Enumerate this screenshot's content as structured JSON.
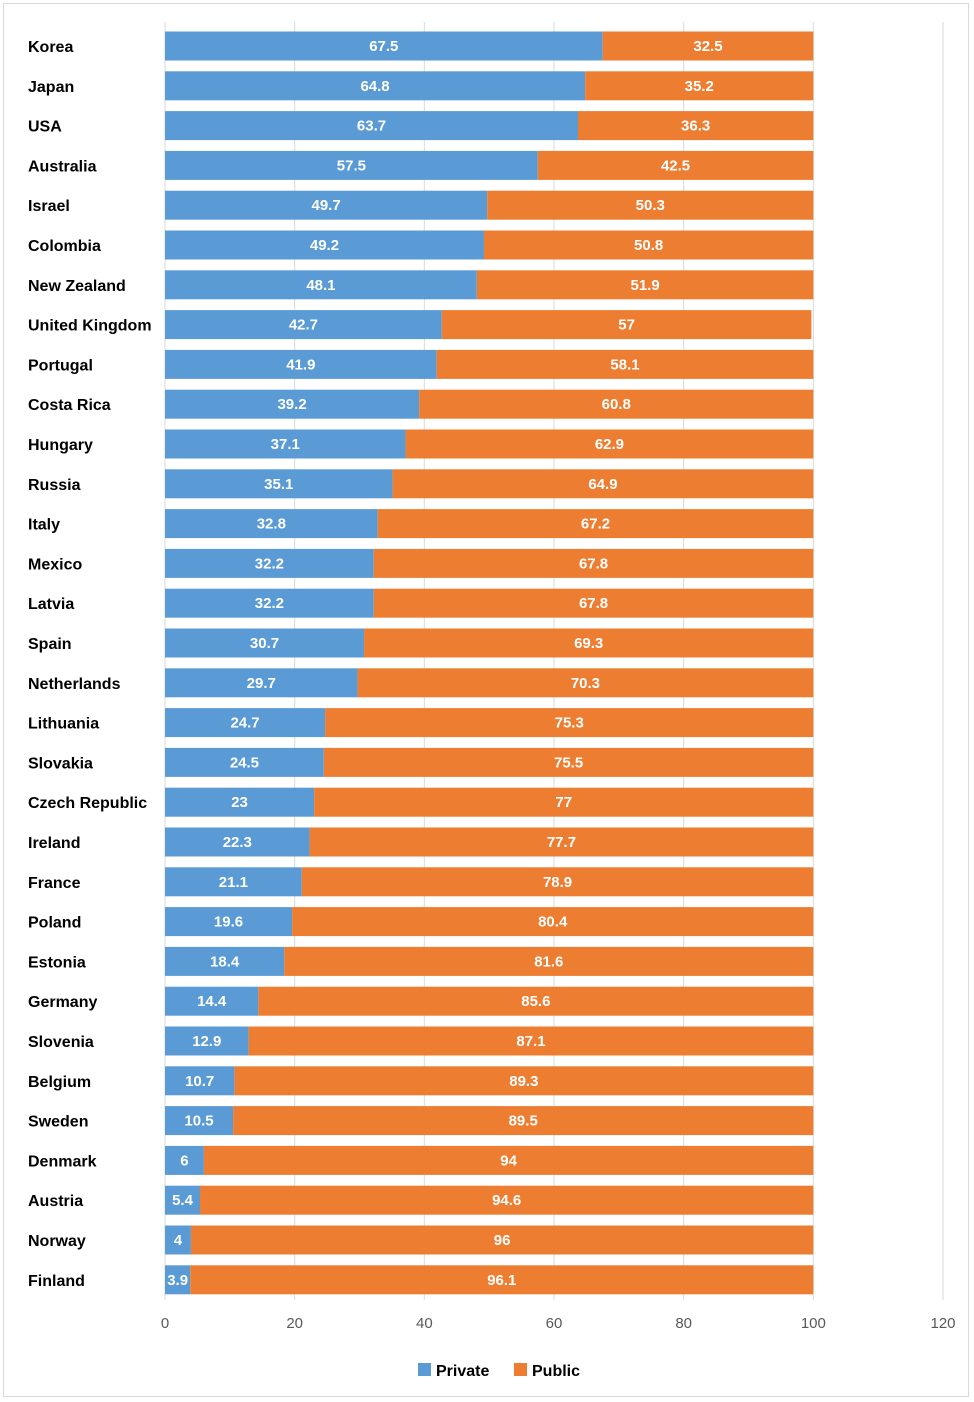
{
  "chart_data": {
    "type": "bar",
    "orientation": "horizontal",
    "stacked": true,
    "categories": [
      "Korea",
      "Japan",
      "USA",
      "Australia",
      "Israel",
      "Colombia",
      "New Zealand",
      "United Kingdom",
      "Portugal",
      "Costa Rica",
      "Hungary",
      "Russia",
      "Italy",
      "Mexico",
      "Latvia",
      "Spain",
      "Netherlands",
      "Lithuania",
      "Slovakia",
      "Czech Republic",
      "Ireland",
      "France",
      "Poland",
      "Estonia",
      "Germany",
      "Slovenia",
      "Belgium",
      "Sweden",
      "Denmark",
      "Austria",
      "Norway",
      "Finland"
    ],
    "series": [
      {
        "name": "Private",
        "color": "#5b9bd5",
        "values": [
          67.5,
          64.8,
          63.7,
          57.5,
          49.7,
          49.2,
          48.1,
          42.7,
          41.9,
          39.2,
          37.1,
          35.1,
          32.8,
          32.2,
          32.2,
          30.7,
          29.7,
          24.7,
          24.5,
          23,
          22.3,
          21.1,
          19.6,
          18.4,
          14.4,
          12.9,
          10.7,
          10.5,
          6,
          5.4,
          4,
          3.9
        ]
      },
      {
        "name": "Public",
        "color": "#ed7d31",
        "values": [
          32.5,
          35.2,
          36.3,
          42.5,
          50.3,
          50.8,
          51.9,
          57,
          58.1,
          60.8,
          62.9,
          64.9,
          67.2,
          67.8,
          67.8,
          69.3,
          70.3,
          75.3,
          75.5,
          77,
          77.7,
          78.9,
          80.4,
          81.6,
          85.6,
          87.1,
          89.3,
          89.5,
          94,
          94.6,
          96,
          96.1
        ]
      }
    ],
    "xlim": [
      0,
      120
    ],
    "xticks": [
      0,
      20,
      40,
      60,
      80,
      100,
      120
    ],
    "grid": "vertical",
    "legend": "bottom",
    "title": "",
    "xlabel": "",
    "ylabel": ""
  }
}
